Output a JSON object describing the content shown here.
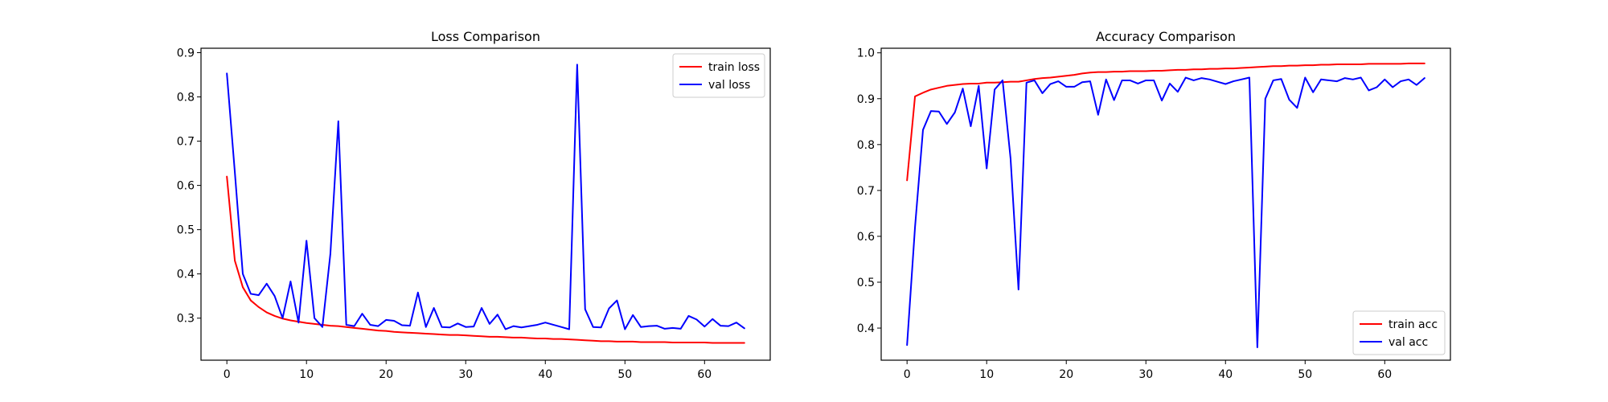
{
  "chart_data": [
    {
      "type": "line",
      "title": "Loss Comparison",
      "xlabel": "",
      "ylabel": "",
      "xlim": [
        -3.25,
        68.25
      ],
      "ylim": [
        0.205,
        0.91
      ],
      "xticks": [
        0,
        10,
        20,
        30,
        40,
        50,
        60
      ],
      "yticks": [
        0.3,
        0.4,
        0.5,
        0.6,
        0.7,
        0.8,
        0.9
      ],
      "legend_position": "top-right",
      "grid": false,
      "x": [
        0,
        1,
        2,
        3,
        4,
        5,
        6,
        7,
        8,
        9,
        10,
        11,
        12,
        13,
        14,
        15,
        16,
        17,
        18,
        19,
        20,
        21,
        22,
        23,
        24,
        25,
        26,
        27,
        28,
        29,
        30,
        31,
        32,
        33,
        34,
        35,
        36,
        37,
        38,
        39,
        40,
        41,
        42,
        43,
        44,
        45,
        46,
        47,
        48,
        49,
        50,
        51,
        52,
        53,
        54,
        55,
        56,
        57,
        58,
        59,
        60,
        61,
        62,
        63,
        64,
        65
      ],
      "series": [
        {
          "name": "train loss",
          "color": "#ff0000",
          "values": [
            0.62,
            0.43,
            0.37,
            0.34,
            0.325,
            0.313,
            0.305,
            0.299,
            0.295,
            0.292,
            0.289,
            0.287,
            0.285,
            0.283,
            0.282,
            0.28,
            0.278,
            0.276,
            0.274,
            0.272,
            0.271,
            0.269,
            0.268,
            0.267,
            0.266,
            0.265,
            0.264,
            0.263,
            0.262,
            0.262,
            0.261,
            0.26,
            0.259,
            0.258,
            0.258,
            0.257,
            0.256,
            0.256,
            0.255,
            0.254,
            0.254,
            0.253,
            0.253,
            0.252,
            0.251,
            0.25,
            0.249,
            0.248,
            0.248,
            0.247,
            0.247,
            0.247,
            0.246,
            0.246,
            0.246,
            0.246,
            0.245,
            0.245,
            0.245,
            0.245,
            0.245,
            0.244,
            0.244,
            0.244,
            0.244,
            0.244
          ]
        },
        {
          "name": "val loss",
          "color": "#0000ff",
          "values": [
            0.853,
            0.63,
            0.4,
            0.355,
            0.352,
            0.378,
            0.35,
            0.3,
            0.383,
            0.29,
            0.475,
            0.3,
            0.28,
            0.445,
            0.745,
            0.285,
            0.282,
            0.31,
            0.285,
            0.282,
            0.296,
            0.294,
            0.284,
            0.283,
            0.358,
            0.28,
            0.323,
            0.28,
            0.279,
            0.288,
            0.28,
            0.281,
            0.323,
            0.287,
            0.308,
            0.275,
            0.282,
            0.279,
            0.282,
            0.285,
            0.29,
            0.285,
            0.28,
            0.275,
            0.873,
            0.32,
            0.28,
            0.279,
            0.322,
            0.34,
            0.275,
            0.307,
            0.28,
            0.282,
            0.283,
            0.276,
            0.278,
            0.276,
            0.305,
            0.297,
            0.281,
            0.298,
            0.283,
            0.282,
            0.29,
            0.277
          ]
        }
      ]
    },
    {
      "type": "line",
      "title": "Accuracy Comparison",
      "xlabel": "",
      "ylabel": "",
      "xlim": [
        -3.25,
        68.25
      ],
      "ylim": [
        0.33,
        1.01
      ],
      "xticks": [
        0,
        10,
        20,
        30,
        40,
        50,
        60
      ],
      "yticks": [
        0.4,
        0.5,
        0.6,
        0.7,
        0.8,
        0.9,
        1.0
      ],
      "legend_position": "bottom-right",
      "grid": false,
      "x": [
        0,
        1,
        2,
        3,
        4,
        5,
        6,
        7,
        8,
        9,
        10,
        11,
        12,
        13,
        14,
        15,
        16,
        17,
        18,
        19,
        20,
        21,
        22,
        23,
        24,
        25,
        26,
        27,
        28,
        29,
        30,
        31,
        32,
        33,
        34,
        35,
        36,
        37,
        38,
        39,
        40,
        41,
        42,
        43,
        44,
        45,
        46,
        47,
        48,
        49,
        50,
        51,
        52,
        53,
        54,
        55,
        56,
        57,
        58,
        59,
        60,
        61,
        62,
        63,
        64,
        65
      ],
      "series": [
        {
          "name": "train acc",
          "color": "#ff0000",
          "values": [
            0.722,
            0.905,
            0.913,
            0.92,
            0.924,
            0.928,
            0.93,
            0.932,
            0.933,
            0.933,
            0.935,
            0.935,
            0.936,
            0.937,
            0.937,
            0.94,
            0.943,
            0.945,
            0.946,
            0.948,
            0.95,
            0.952,
            0.955,
            0.957,
            0.958,
            0.958,
            0.959,
            0.959,
            0.96,
            0.96,
            0.96,
            0.961,
            0.961,
            0.962,
            0.963,
            0.963,
            0.964,
            0.964,
            0.965,
            0.965,
            0.966,
            0.966,
            0.967,
            0.968,
            0.969,
            0.97,
            0.971,
            0.971,
            0.972,
            0.972,
            0.973,
            0.973,
            0.974,
            0.974,
            0.975,
            0.975,
            0.975,
            0.975,
            0.976,
            0.976,
            0.976,
            0.976,
            0.976,
            0.977,
            0.977,
            0.977
          ]
        },
        {
          "name": "val acc",
          "color": "#0000ff",
          "values": [
            0.363,
            0.62,
            0.832,
            0.873,
            0.872,
            0.845,
            0.87,
            0.922,
            0.84,
            0.928,
            0.748,
            0.92,
            0.94,
            0.77,
            0.484,
            0.935,
            0.94,
            0.912,
            0.932,
            0.938,
            0.926,
            0.926,
            0.936,
            0.938,
            0.865,
            0.942,
            0.897,
            0.94,
            0.94,
            0.933,
            0.94,
            0.94,
            0.896,
            0.933,
            0.915,
            0.946,
            0.94,
            0.945,
            0.942,
            0.937,
            0.932,
            0.938,
            0.942,
            0.946,
            0.358,
            0.9,
            0.94,
            0.943,
            0.898,
            0.88,
            0.946,
            0.914,
            0.942,
            0.94,
            0.938,
            0.945,
            0.942,
            0.946,
            0.918,
            0.925,
            0.942,
            0.925,
            0.938,
            0.942,
            0.93,
            0.945
          ]
        }
      ]
    }
  ]
}
